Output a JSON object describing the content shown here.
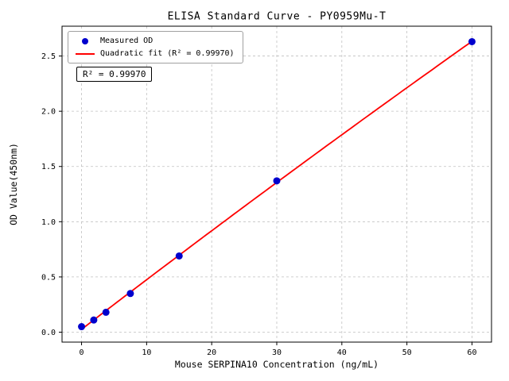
{
  "chart_data": {
    "type": "scatter",
    "title": "ELISA Standard Curve - PY0959Mu-T",
    "xlabel": "Mouse SERPINA10 Concentration (ng/mL)",
    "ylabel": "OD Value(450nm)",
    "xlim": [
      -3,
      63
    ],
    "ylim": [
      -0.09,
      2.77
    ],
    "xticks": [
      0,
      10,
      20,
      30,
      40,
      50,
      60
    ],
    "xtick_labels": [
      "0",
      "10",
      "20",
      "30",
      "40",
      "50",
      "60"
    ],
    "yticks": [
      0,
      0.5,
      1.0,
      1.5,
      2.0,
      2.5
    ],
    "ytick_labels": [
      "0.0",
      "0.5",
      "1.0",
      "1.5",
      "2.0",
      "2.5"
    ],
    "grid": true,
    "grid_color": "#c0c0c0",
    "legend_position": "upper-left",
    "annotation": "R² = 0.99970",
    "r_squared": 0.9997,
    "series": [
      {
        "name": "Measured OD",
        "type": "scatter",
        "color": "#0000cd",
        "x": [
          0,
          1.875,
          3.75,
          7.5,
          15,
          30,
          60
        ],
        "y": [
          0.05,
          0.11,
          0.18,
          0.35,
          0.69,
          1.37,
          2.63
        ]
      },
      {
        "name": "Quadratic fit (R² = 0.99970)",
        "type": "line",
        "color": "#ff0000"
      }
    ]
  }
}
